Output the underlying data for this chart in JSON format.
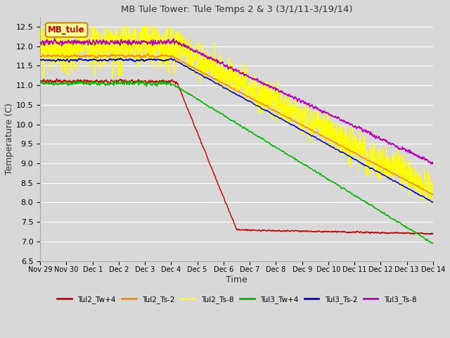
{
  "title": "MB Tule Tower: Tule Temps 2 & 3 (3/1/11-3/19/14)",
  "xlabel": "Time",
  "ylabel": "Temperature (C)",
  "ylim": [
    6.5,
    12.75
  ],
  "yticks": [
    6.5,
    7.0,
    7.5,
    8.0,
    8.5,
    9.0,
    9.5,
    10.0,
    10.5,
    11.0,
    11.5,
    12.0,
    12.5
  ],
  "background_color": "#d8d8d8",
  "plot_background": "#d8d8d8",
  "grid_color": "#ffffff",
  "series": {
    "Tul2_Tw+4": {
      "color": "#cc0000",
      "linewidth": 1.0
    },
    "Tul2_Ts-2": {
      "color": "#ff8800",
      "linewidth": 1.0
    },
    "Tul2_Ts-8": {
      "color": "#ffff00",
      "linewidth": 1.0
    },
    "Tul3_Tw+4": {
      "color": "#00bb00",
      "linewidth": 1.0
    },
    "Tul3_Ts-2": {
      "color": "#0000dd",
      "linewidth": 1.0
    },
    "Tul3_Ts-8": {
      "color": "#bb00bb",
      "linewidth": 1.0
    }
  },
  "xtick_labels": [
    "Nov 29",
    "Nov 30",
    "Dec 1",
    "Dec 2",
    "Dec 3",
    "Dec 4",
    "Dec 5",
    "Dec 6",
    "Dec 7",
    "Dec 8",
    "Dec 9",
    "Dec 10",
    "Dec 11",
    "Dec 12",
    "Dec 13",
    "Dec 14"
  ],
  "annotation_text": "MB_tule",
  "annotation_color": "#cc0000",
  "annotation_bg": "#ffff99",
  "annotation_border": "#cc8800",
  "figsize": [
    6.4,
    4.8
  ],
  "dpi": 100
}
